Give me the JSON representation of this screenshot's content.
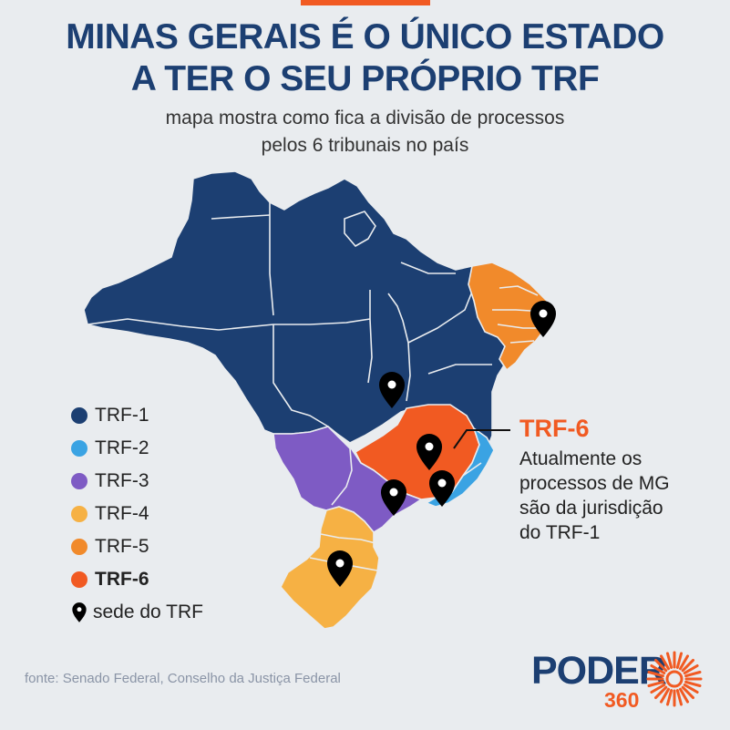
{
  "title_lines": [
    "MINAS GERAIS É O ÚNICO ESTADO",
    "A TER O SEU PRÓPRIO TRF"
  ],
  "subtitle_lines": [
    "mapa mostra como fica a divisão de processos",
    "pelos 6 tribunais no país"
  ],
  "legend": [
    {
      "label": "TRF-1",
      "color": "#1c3f72"
    },
    {
      "label": "TRF-2",
      "color": "#3aa3e3"
    },
    {
      "label": "TRF-3",
      "color": "#7e5bc4"
    },
    {
      "label": "TRF-4",
      "color": "#f6b144"
    },
    {
      "label": "TRF-5",
      "color": "#f18a2b"
    },
    {
      "label": "TRF-6",
      "color": "#f15a22"
    }
  ],
  "legend_pin_label": "sede do TRF",
  "callout": {
    "title": "TRF-6",
    "lines": [
      "Atualmente os",
      "processos de MG",
      "são da jurisdição",
      "do TRF-1"
    ]
  },
  "source": "fonte: Senado Federal, Conselho da Justiça Federal",
  "logo": {
    "word": "PODER",
    "number": "360"
  },
  "icons": {
    "pin": "map-pin-icon",
    "logo_sun": "sun-rays-icon"
  },
  "colors": {
    "title": "#1c3f72",
    "accent": "#f15a22",
    "background": "#e9ecef"
  }
}
